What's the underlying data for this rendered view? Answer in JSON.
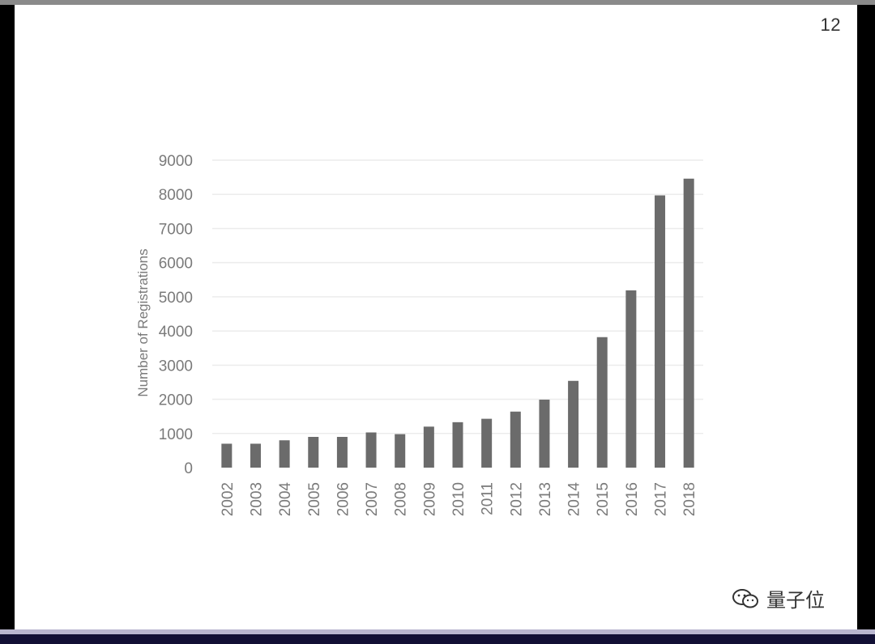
{
  "slide": {
    "page_number": "12"
  },
  "watermark": {
    "text": "量子位"
  },
  "chart_data": {
    "type": "bar",
    "ylabel": "Number of Registrations",
    "xlabel": "",
    "ylim": [
      0,
      9000
    ],
    "yticks": [
      0,
      1000,
      2000,
      3000,
      4000,
      5000,
      6000,
      7000,
      8000,
      9000
    ],
    "grid": "horizontal",
    "categories": [
      "2002",
      "2003",
      "2004",
      "2005",
      "2006",
      "2007",
      "2008",
      "2009",
      "2010",
      "2011",
      "2012",
      "2013",
      "2014",
      "2015",
      "2016",
      "2017",
      "2018"
    ],
    "values": [
      700,
      700,
      800,
      900,
      900,
      1030,
      980,
      1200,
      1330,
      1430,
      1640,
      1990,
      2540,
      3820,
      5190,
      7970,
      8460
    ],
    "colors": {
      "bar": "#6b6b6b",
      "grid": "#ececec"
    }
  }
}
